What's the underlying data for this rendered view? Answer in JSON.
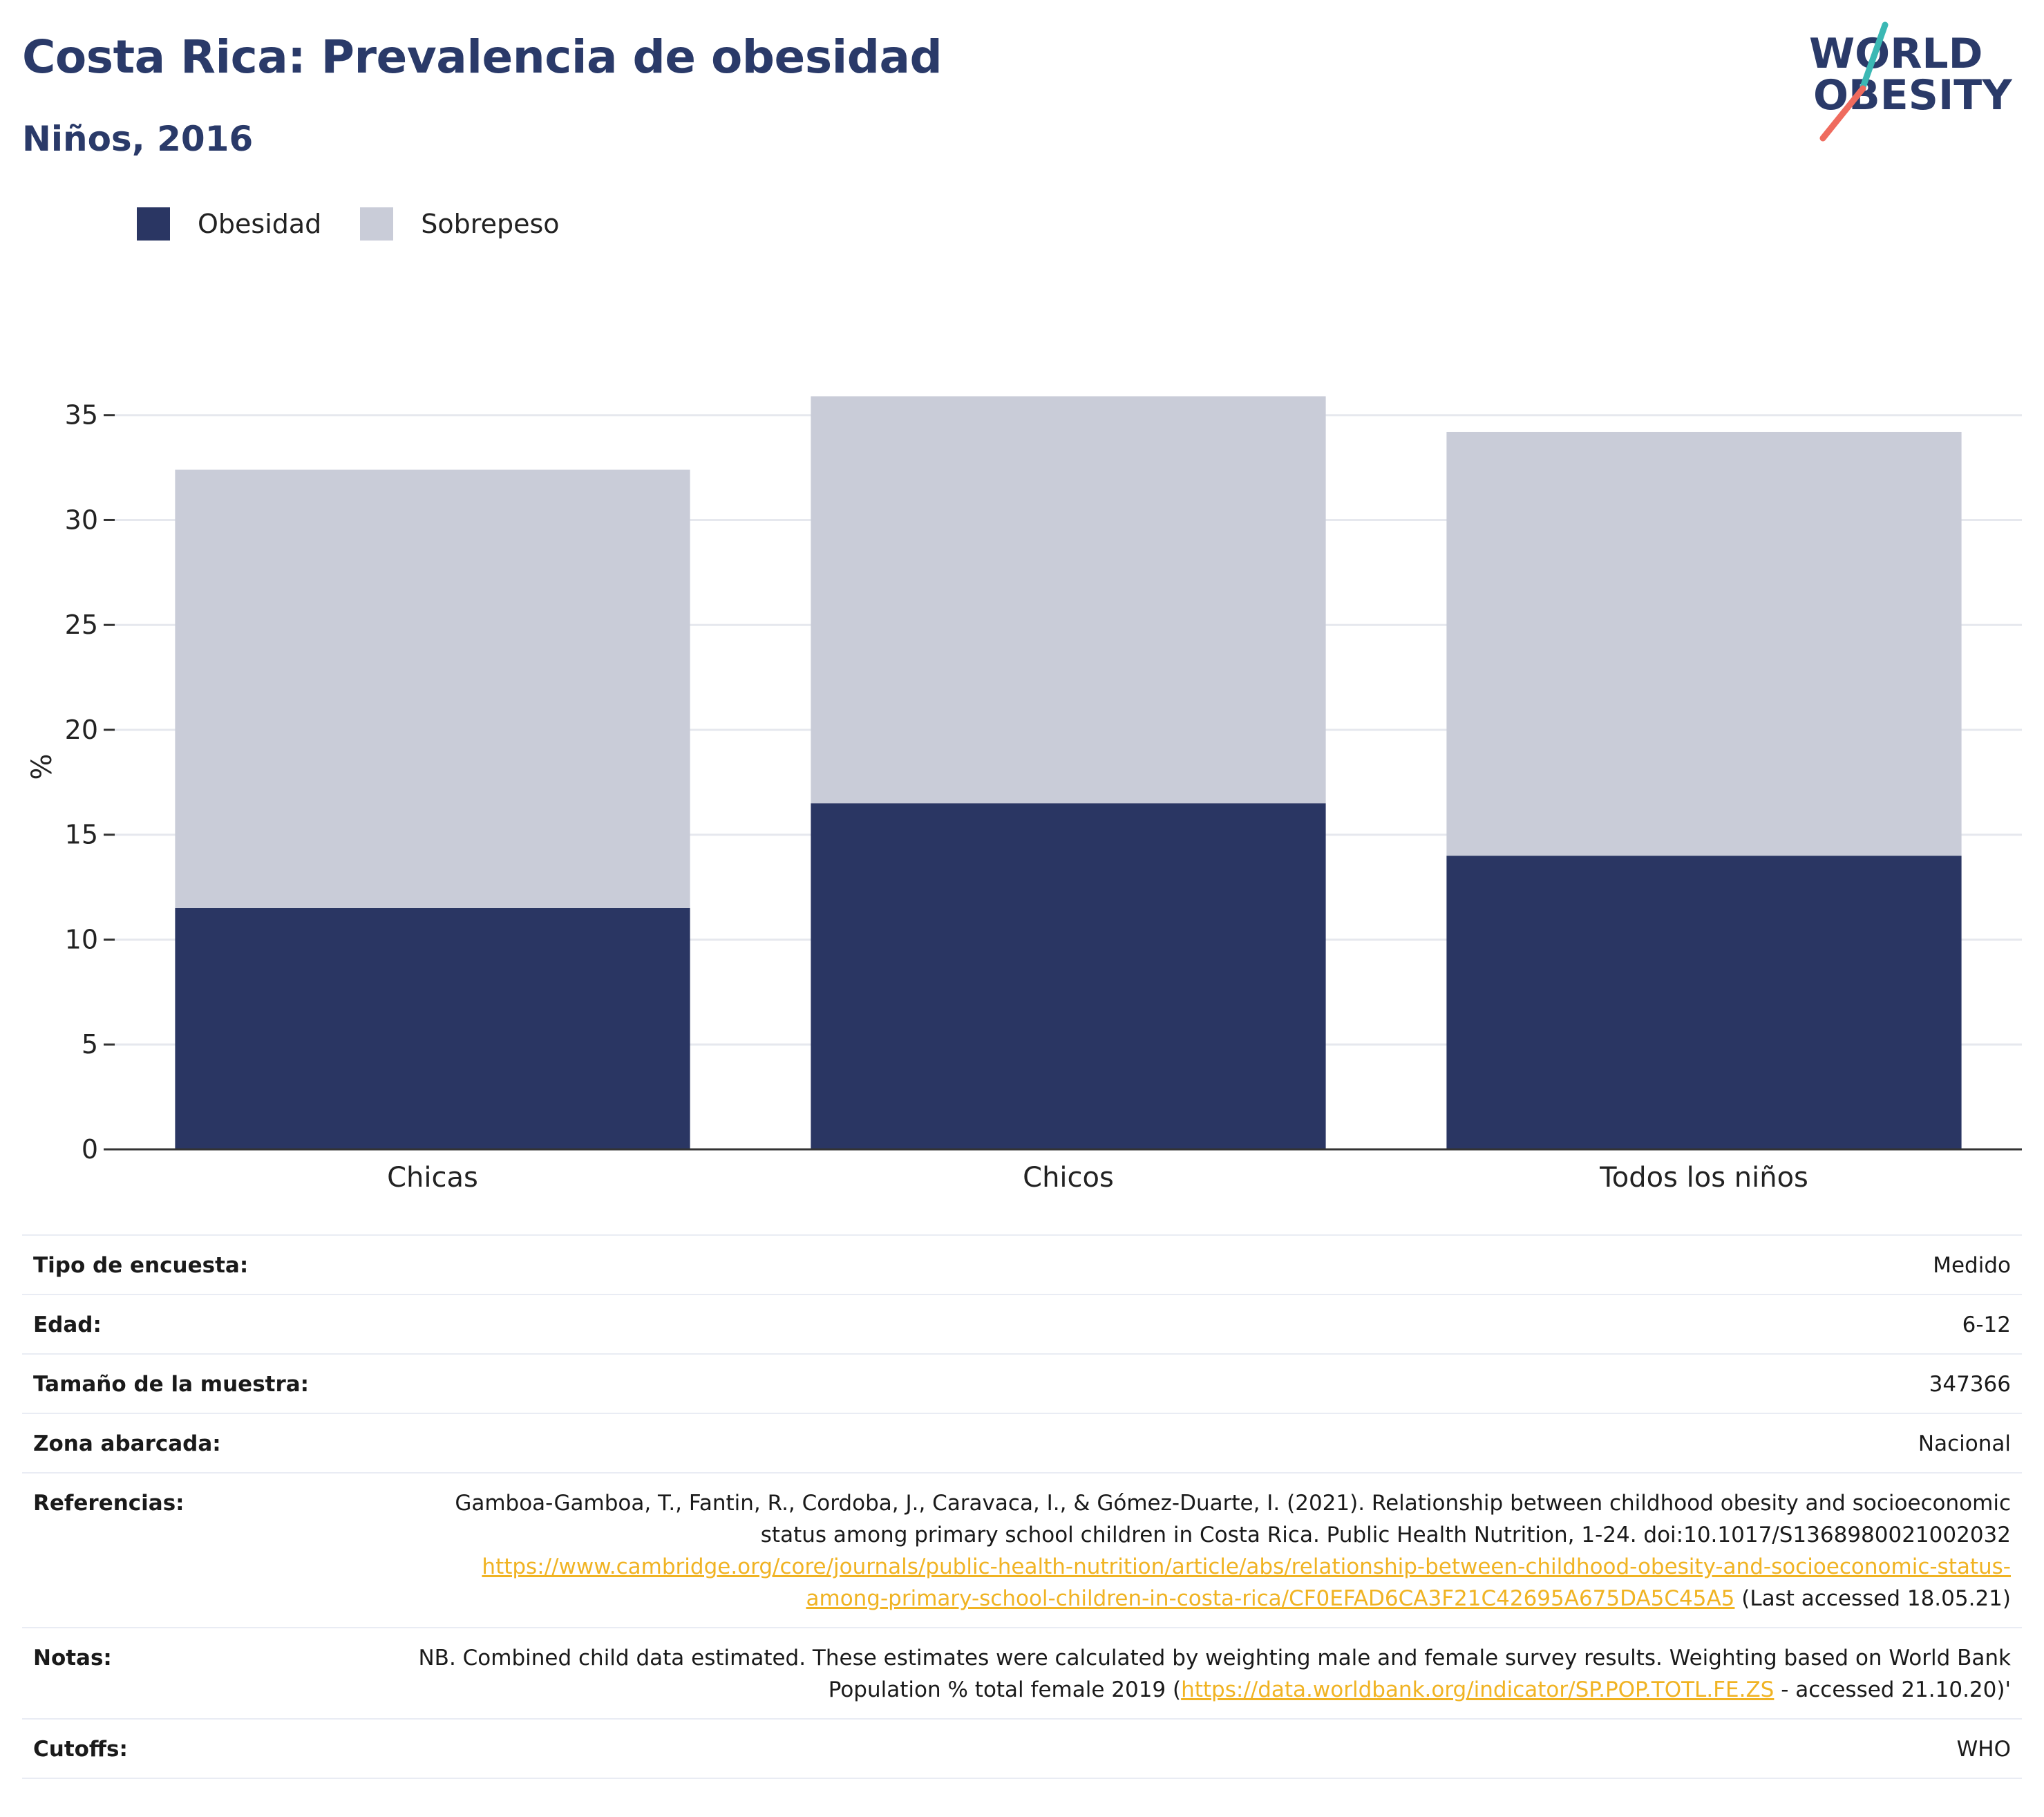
{
  "header": {
    "title": "Costa Rica: Prevalencia de obesidad",
    "subtitle": "Niños, 2016"
  },
  "logo": {
    "line1": "WORLD",
    "line2": "OBESITY",
    "teal": "#3bb8b4",
    "coral": "#ef6b5e",
    "navy": "#2a3a69"
  },
  "colors": {
    "obesity": "#2a3663",
    "overweight": "#c9ccd8",
    "grid": "#e6e8ee",
    "axis": "#333333"
  },
  "legend": [
    {
      "label": "Obesidad",
      "color": "#2a3663"
    },
    {
      "label": "Sobrepeso",
      "color": "#c9ccd8"
    }
  ],
  "chart_data": {
    "type": "bar",
    "stacked": true,
    "categories": [
      "Chicas",
      "Chicos",
      "Todos los niños"
    ],
    "series": [
      {
        "name": "Obesidad",
        "values": [
          11.5,
          16.5,
          14.0
        ],
        "color": "#2a3663"
      },
      {
        "name": "Sobrepeso",
        "values": [
          20.9,
          19.4,
          20.2
        ],
        "color": "#c9ccd8"
      }
    ],
    "totals": [
      32.4,
      35.9,
      34.2
    ],
    "ylabel": "%",
    "ylim": [
      0,
      37
    ],
    "yticks": [
      0,
      5,
      10,
      15,
      20,
      25,
      30,
      35
    ],
    "grid": true,
    "legend_position": "top-left"
  },
  "meta": [
    {
      "label": "Tipo de encuesta:",
      "value": "Medido"
    },
    {
      "label": "Edad:",
      "value": "6-12"
    },
    {
      "label": "Tamaño de la muestra:",
      "value": "347366"
    },
    {
      "label": "Zona abarcada:",
      "value": "Nacional"
    },
    {
      "label": "Referencias:",
      "value_before": "Gamboa-Gamboa, T., Fantin, R., Cordoba, J., Caravaca, I., & Gómez-Duarte, I. (2021). Relationship between childhood obesity and socioeconomic status among primary school children in Costa Rica. Public Health Nutrition, 1-24. doi:10.1017/S1368980021002032 ",
      "link": "https://www.cambridge.org/core/journals/public-health-nutrition/article/abs/relationship-between-childhood-obesity-and-socioeconomic-status-among-primary-school-children-in-costa-rica/CF0EFAD6CA3F21C42695A675DA5C45A5",
      "value_after": " (Last accessed 18.05.21)"
    },
    {
      "label": "Notas:",
      "value_before": "NB. Combined child data estimated. These estimates were calculated by weighting male and female survey results. Weighting based on World Bank Population % total female 2019 (",
      "link": "https://data.worldbank.org/indicator/SP.POP.TOTL.FE.ZS",
      "value_after": " - accessed 21.10.20)'"
    },
    {
      "label": "Cutoffs:",
      "value": "WHO"
    }
  ]
}
